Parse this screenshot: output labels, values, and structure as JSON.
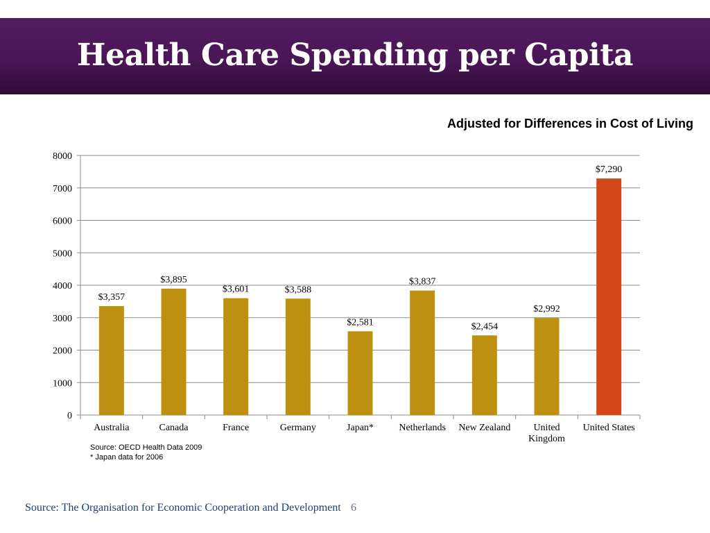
{
  "slide": {
    "title": "Health Care Spending per Capita",
    "subtitle": "Adjusted for Differences in Cost of Living",
    "chart_source_lines": [
      "Source: OECD Health Data 2009",
      "* Japan data for 2006"
    ],
    "footer_source": "Source: The Organisation for Economic Cooperation and Development",
    "slide_number": "6"
  },
  "colors": {
    "header_top": "#531d61",
    "header_bottom": "#300b37",
    "bar": "#bd910f",
    "highlight_bar": "#d14719",
    "gridline": "#8a8a8a"
  },
  "chart_data": {
    "type": "bar",
    "title": "",
    "xlabel": "",
    "ylabel": "",
    "ylim": [
      0,
      8000
    ],
    "yticks": [
      0,
      1000,
      2000,
      3000,
      4000,
      5000,
      6000,
      7000,
      8000
    ],
    "grid": true,
    "categories": [
      [
        "Australia"
      ],
      [
        "Canada"
      ],
      [
        "France"
      ],
      [
        "Germany"
      ],
      [
        "Japan*"
      ],
      [
        "Netherlands"
      ],
      [
        "New Zealand"
      ],
      [
        "United",
        "Kingdom"
      ],
      [
        "United States"
      ]
    ],
    "values": [
      3357,
      3895,
      3601,
      3588,
      2581,
      3837,
      2454,
      2992,
      7290
    ],
    "data_labels": [
      "$3,357",
      "$3,895",
      "$3,601",
      "$3,588",
      "$2,581",
      "$3,837",
      "$2,454",
      "$2,992",
      "$7,290"
    ],
    "highlight_index": 8
  }
}
